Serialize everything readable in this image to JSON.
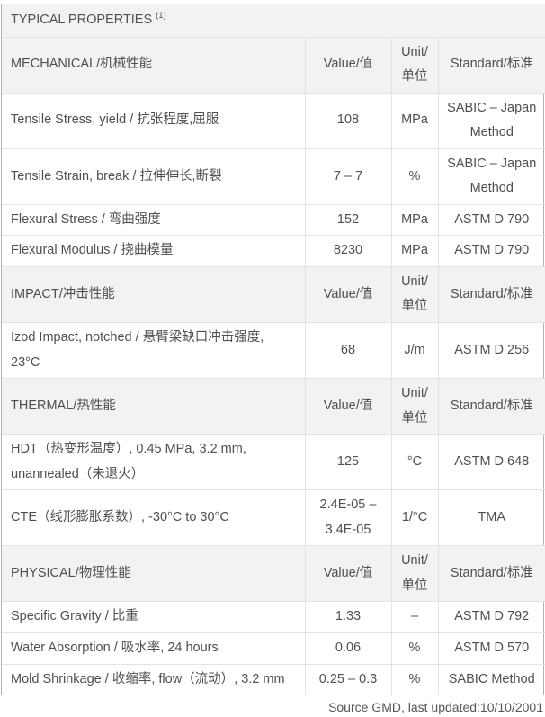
{
  "table": {
    "title": "TYPICAL PROPERTIES",
    "title_superscript": "(1)",
    "columns": {
      "value": "Value/值",
      "unit": "Unit/单位",
      "standard": "Standard/标准"
    },
    "sections": [
      {
        "label": "MECHANICAL/机械性能",
        "rows": [
          {
            "property": "Tensile Stress, yield / 抗张程度,屈服",
            "value": "108",
            "unit": "MPa",
            "standard": "SABIC – Japan Method"
          },
          {
            "property": "Tensile Strain, break / 拉伸伸长,断裂",
            "value": "7 – 7",
            "unit": "%",
            "standard": "SABIC – Japan Method"
          },
          {
            "property": "Flexural Stress / 弯曲强度",
            "value": "152",
            "unit": "MPa",
            "standard": "ASTM D 790"
          },
          {
            "property": "Flexural Modulus / 挠曲模量",
            "value": "8230",
            "unit": "MPa",
            "standard": "ASTM D 790"
          }
        ]
      },
      {
        "label": "IMPACT/冲击性能",
        "rows": [
          {
            "property": "Izod Impact, notched / 悬臂梁缺口冲击强度, 23°C",
            "value": "68",
            "unit": "J/m",
            "standard": "ASTM D 256"
          }
        ]
      },
      {
        "label": "THERMAL/热性能",
        "rows": [
          {
            "property": "HDT（热变形温度）, 0.45 MPa, 3.2 mm, unannealed（未退火）",
            "value": "125",
            "unit": "°C",
            "standard": "ASTM D 648"
          },
          {
            "property": "CTE（线形膨胀系数）, -30°C to 30°C",
            "value": "2.4E-05 – 3.4E-05",
            "unit": "1/°C",
            "standard": "TMA"
          }
        ]
      },
      {
        "label": "PHYSICAL/物理性能",
        "rows": [
          {
            "property": "Specific Gravity / 比重",
            "value": "1.33",
            "unit": "–",
            "standard": "ASTM D 792"
          },
          {
            "property": "Water Absorption / 吸水率, 24 hours",
            "value": "0.06",
            "unit": "%",
            "standard": "ASTM D 570"
          },
          {
            "property": "Mold Shrinkage / 收缩率, flow（流动）, 3.2 mm",
            "value": "0.25 – 0.3",
            "unit": "%",
            "standard": "SABIC Method"
          }
        ]
      }
    ],
    "footer": "Source GMD, last updated:10/10/2001",
    "colors": {
      "section_bg": "#f2f2f2",
      "inner_border": "#e3e3e3",
      "outer_border": "#b3b3b3",
      "text": "#4f4f4f"
    }
  }
}
